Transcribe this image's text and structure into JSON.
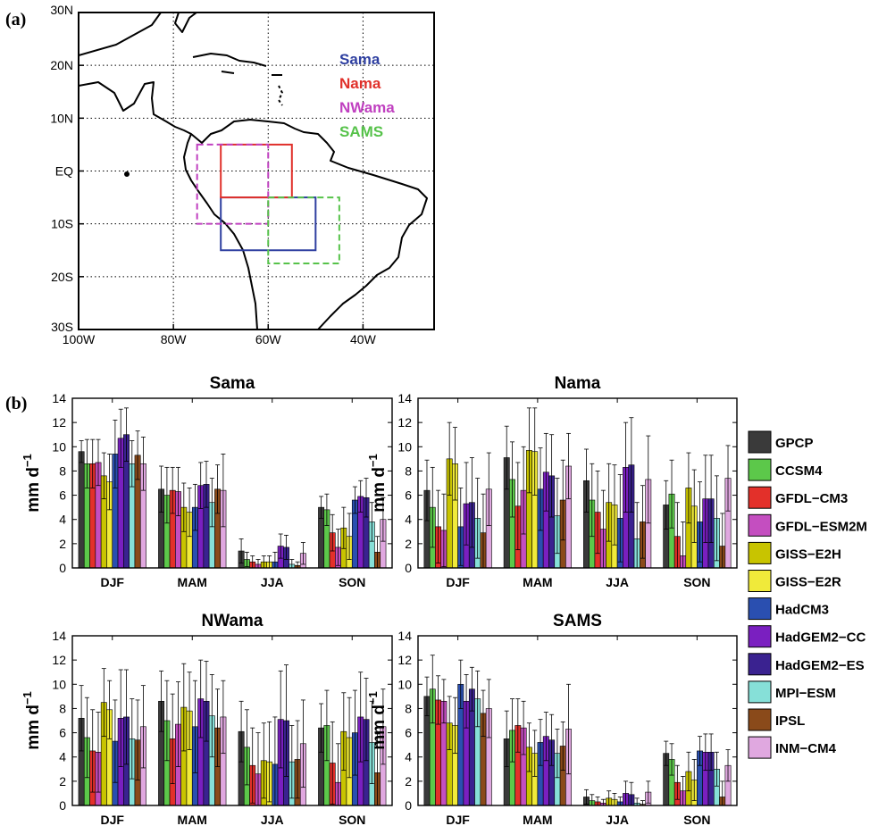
{
  "panel_a": {
    "label": "(a)",
    "lon_ticks": [
      "100W",
      "80W",
      "60W",
      "40W"
    ],
    "lat_ticks": [
      "30N",
      "20N",
      "10N",
      "EQ",
      "10S",
      "20S",
      "30S"
    ],
    "lon_range": [
      -100,
      -25
    ],
    "lat_range": [
      -30,
      30
    ],
    "grid": true,
    "regions": [
      {
        "name": "Sama",
        "lon": [
          -70,
          -50
        ],
        "lat": [
          -15,
          -5
        ],
        "color": "#2e3fa0",
        "dashed": false
      },
      {
        "name": "Nama",
        "lon": [
          -70,
          -55
        ],
        "lat": [
          -5,
          5
        ],
        "color": "#e0302a",
        "dashed": false
      },
      {
        "name": "NWama",
        "lon": [
          -75,
          -60
        ],
        "lat": [
          -10,
          5
        ],
        "color": "#c040c0",
        "dashed": true
      },
      {
        "name": "SAMS",
        "lon": [
          -60,
          -45
        ],
        "lat": [
          -17.5,
          -5
        ],
        "color": "#56c24a",
        "dashed": true
      }
    ]
  },
  "panel_b": {
    "label": "(b)",
    "legend": [
      {
        "name": "GPCP",
        "color": "#3a3a3a"
      },
      {
        "name": "CCSM4",
        "color": "#5cc84a"
      },
      {
        "name": "GFDL−CM3",
        "color": "#e3302a"
      },
      {
        "name": "GFDL−ESM2M",
        "color": "#c44ec0"
      },
      {
        "name": "GISS−E2H",
        "color": "#c8c400"
      },
      {
        "name": "GISS−E2R",
        "color": "#f0ea3a"
      },
      {
        "name": "HadCM3",
        "color": "#2a4fb0"
      },
      {
        "name": "HadGEM2−CC",
        "color": "#7a1fc0"
      },
      {
        "name": "HadGEM2−ES",
        "color": "#3a2290"
      },
      {
        "name": "MPI−ESM",
        "color": "#86e0d8"
      },
      {
        "name": "IPSL",
        "color": "#8a4a1a"
      },
      {
        "name": "INM−CM4",
        "color": "#e0a8e0"
      }
    ]
  },
  "chart_data": [
    {
      "type": "bar",
      "title": "Sama",
      "ylabel": "mm d−1",
      "ylim": [
        0,
        14
      ],
      "yticks": [
        0,
        2,
        4,
        6,
        8,
        10,
        12,
        14
      ],
      "categories": [
        "DJF",
        "MAM",
        "JJA",
        "SON"
      ],
      "series": [
        {
          "name": "GPCP",
          "values": [
            9.6,
            6.5,
            1.4,
            5.0
          ],
          "err": [
            0.9,
            1.9,
            1.0,
            0.9
          ]
        },
        {
          "name": "CCSM4",
          "values": [
            8.6,
            6.0,
            0.7,
            4.8
          ],
          "err": [
            2.0,
            2.3,
            0.6,
            1.3
          ]
        },
        {
          "name": "GFDL−CM3",
          "values": [
            8.6,
            6.4,
            0.5,
            2.9
          ],
          "err": [
            2.0,
            1.9,
            0.5,
            1.5
          ]
        },
        {
          "name": "GFDL−ESM2M",
          "values": [
            8.7,
            6.3,
            0.3,
            1.7
          ],
          "err": [
            1.9,
            2.0,
            0.4,
            1.5
          ]
        },
        {
          "name": "GISS−E2H",
          "values": [
            7.6,
            5.0,
            0.5,
            3.3
          ],
          "err": [
            1.9,
            2.0,
            0.5,
            1.7
          ]
        },
        {
          "name": "GISS−E2R",
          "values": [
            7.1,
            4.6,
            0.5,
            2.6
          ],
          "err": [
            2.3,
            2.0,
            0.5,
            1.9
          ]
        },
        {
          "name": "HadCM3",
          "values": [
            9.4,
            5.0,
            0.5,
            5.6
          ],
          "err": [
            2.8,
            1.9,
            0.8,
            1.1
          ]
        },
        {
          "name": "HadGEM2−CC",
          "values": [
            10.7,
            6.8,
            1.8,
            5.9
          ],
          "err": [
            2.4,
            1.9,
            1.0,
            1.3
          ]
        },
        {
          "name": "HadGEM2−ES",
          "values": [
            11.0,
            6.9,
            1.7,
            5.8
          ],
          "err": [
            2.2,
            1.9,
            1.0,
            1.6
          ]
        },
        {
          "name": "MPI−ESM",
          "values": [
            8.6,
            5.4,
            0.3,
            3.8
          ],
          "err": [
            1.9,
            2.0,
            0.4,
            1.6
          ]
        },
        {
          "name": "IPSL",
          "values": [
            9.3,
            6.5,
            0.2,
            1.3
          ],
          "err": [
            2.0,
            2.0,
            0.3,
            1.3
          ]
        },
        {
          "name": "INM−CM4",
          "values": [
            8.6,
            6.4,
            1.2,
            4.0
          ],
          "err": [
            2.2,
            3.0,
            0.9,
            1.8
          ]
        }
      ]
    },
    {
      "type": "bar",
      "title": "Nama",
      "ylabel": "mm d−1",
      "ylim": [
        0,
        14
      ],
      "yticks": [
        0,
        2,
        4,
        6,
        8,
        10,
        12,
        14
      ],
      "categories": [
        "DJF",
        "MAM",
        "JJA",
        "SON"
      ],
      "series": [
        {
          "name": "GPCP",
          "values": [
            6.4,
            9.1,
            7.2,
            5.2
          ],
          "err": [
            2.5,
            2.6,
            2.6,
            2.0
          ]
        },
        {
          "name": "CCSM4",
          "values": [
            5.0,
            7.3,
            5.6,
            6.1
          ],
          "err": [
            3.3,
            3.1,
            3.0,
            2.8
          ]
        },
        {
          "name": "GFDL−CM3",
          "values": [
            3.4,
            5.1,
            4.6,
            2.6
          ],
          "err": [
            3.0,
            3.6,
            3.4,
            2.8
          ]
        },
        {
          "name": "GFDL−ESM2M",
          "values": [
            3.1,
            6.4,
            3.2,
            1.0
          ],
          "err": [
            3.0,
            3.6,
            3.2,
            2.8
          ]
        },
        {
          "name": "GISS−E2H",
          "values": [
            9.0,
            9.7,
            5.4,
            6.6
          ],
          "err": [
            3.0,
            3.5,
            3.2,
            2.9
          ]
        },
        {
          "name": "GISS−E2R",
          "values": [
            8.6,
            9.6,
            5.2,
            5.1
          ],
          "err": [
            3.0,
            3.6,
            3.3,
            3.0
          ]
        },
        {
          "name": "HadCM3",
          "values": [
            3.4,
            6.5,
            4.1,
            3.8
          ],
          "err": [
            3.2,
            3.4,
            3.6,
            3.3
          ]
        },
        {
          "name": "HadGEM2−CC",
          "values": [
            5.3,
            7.9,
            8.3,
            5.7
          ],
          "err": [
            3.4,
            3.2,
            3.7,
            3.6
          ]
        },
        {
          "name": "HadGEM2−ES",
          "values": [
            5.4,
            7.6,
            8.5,
            5.7
          ],
          "err": [
            3.7,
            3.4,
            3.9,
            3.6
          ]
        },
        {
          "name": "MPI−ESM",
          "values": [
            4.1,
            4.3,
            2.4,
            4.1
          ],
          "err": [
            3.3,
            3.1,
            3.0,
            3.5
          ]
        },
        {
          "name": "IPSL",
          "values": [
            2.9,
            5.6,
            3.8,
            1.8
          ],
          "err": [
            3.2,
            3.3,
            3.0,
            2.7
          ]
        },
        {
          "name": "INM−CM4",
          "values": [
            6.5,
            8.4,
            7.3,
            7.4
          ],
          "err": [
            3.0,
            2.7,
            3.6,
            2.7
          ]
        }
      ]
    },
    {
      "type": "bar",
      "title": "NWama",
      "ylabel": "mm d−1",
      "ylim": [
        0,
        14
      ],
      "yticks": [
        0,
        2,
        4,
        6,
        8,
        10,
        12,
        14
      ],
      "categories": [
        "DJF",
        "MAM",
        "JJA",
        "SON"
      ],
      "series": [
        {
          "name": "GPCP",
          "values": [
            7.2,
            8.6,
            6.1,
            6.4
          ],
          "err": [
            2.7,
            2.5,
            2.5,
            2.0
          ]
        },
        {
          "name": "CCSM4",
          "values": [
            5.6,
            7.0,
            4.8,
            6.6
          ],
          "err": [
            3.3,
            3.3,
            3.1,
            2.9
          ]
        },
        {
          "name": "GFDL−CM3",
          "values": [
            4.5,
            5.5,
            3.3,
            3.5
          ],
          "err": [
            3.4,
            3.7,
            3.1,
            3.4
          ]
        },
        {
          "name": "GFDL−ESM2M",
          "values": [
            4.4,
            6.7,
            2.6,
            1.9
          ],
          "err": [
            3.3,
            3.5,
            3.4,
            3.2
          ]
        },
        {
          "name": "GISS−E2H",
          "values": [
            8.5,
            8.1,
            3.7,
            6.1
          ],
          "err": [
            2.8,
            3.6,
            3.1,
            3.2
          ]
        },
        {
          "name": "GISS−E2R",
          "values": [
            7.9,
            7.8,
            3.6,
            5.6
          ],
          "err": [
            2.4,
            3.2,
            3.3,
            3.3
          ]
        },
        {
          "name": "HadCM3",
          "values": [
            5.3,
            6.5,
            3.4,
            6.0
          ],
          "err": [
            3.4,
            3.8,
            3.9,
            3.5
          ]
        },
        {
          "name": "HadGEM2−CC",
          "values": [
            7.2,
            8.8,
            7.1,
            7.3
          ],
          "err": [
            4.0,
            3.2,
            4.0,
            3.7
          ]
        },
        {
          "name": "HadGEM2−ES",
          "values": [
            7.3,
            8.6,
            7.0,
            7.1
          ],
          "err": [
            3.9,
            3.3,
            4.6,
            3.4
          ]
        },
        {
          "name": "MPI−ESM",
          "values": [
            5.5,
            7.4,
            3.6,
            5.2
          ],
          "err": [
            3.3,
            3.4,
            3.0,
            3.4
          ]
        },
        {
          "name": "IPSL",
          "values": [
            5.4,
            6.4,
            3.8,
            2.7
          ],
          "err": [
            3.3,
            3.2,
            3.2,
            3.2
          ]
        },
        {
          "name": "INM−CM4",
          "values": [
            6.5,
            7.3,
            5.1,
            6.5
          ],
          "err": [
            3.4,
            3.0,
            3.6,
            3.1
          ]
        }
      ]
    },
    {
      "type": "bar",
      "title": "SAMS",
      "ylabel": "mm d−1",
      "ylim": [
        0,
        14
      ],
      "yticks": [
        0,
        2,
        4,
        6,
        8,
        10,
        12,
        14
      ],
      "categories": [
        "DJF",
        "MAM",
        "JJA",
        "SON"
      ],
      "series": [
        {
          "name": "GPCP",
          "values": [
            9.0,
            5.5,
            0.7,
            4.3
          ],
          "err": [
            1.6,
            2.3,
            0.6,
            1.0
          ]
        },
        {
          "name": "CCSM4",
          "values": [
            9.6,
            6.2,
            0.4,
            3.8
          ],
          "err": [
            2.8,
            2.6,
            0.5,
            1.3
          ]
        },
        {
          "name": "GFDL−CM3",
          "values": [
            8.7,
            6.6,
            0.3,
            1.9
          ],
          "err": [
            2.0,
            2.2,
            0.4,
            1.4
          ]
        },
        {
          "name": "GFDL−ESM2M",
          "values": [
            8.6,
            6.4,
            0.2,
            1.2
          ],
          "err": [
            1.8,
            2.2,
            0.3,
            1.2
          ]
        },
        {
          "name": "GISS−E2H",
          "values": [
            6.8,
            4.8,
            0.6,
            2.8
          ],
          "err": [
            2.2,
            2.0,
            0.6,
            1.6
          ]
        },
        {
          "name": "GISS−E2R",
          "values": [
            6.6,
            4.3,
            0.5,
            2.1
          ],
          "err": [
            2.3,
            1.9,
            0.5,
            1.7
          ]
        },
        {
          "name": "HadCM3",
          "values": [
            10.0,
            5.2,
            0.3,
            4.5
          ],
          "err": [
            2.0,
            1.9,
            0.4,
            1.2
          ]
        },
        {
          "name": "HadGEM2−CC",
          "values": [
            8.6,
            5.7,
            1.0,
            4.4
          ],
          "err": [
            2.2,
            2.0,
            1.0,
            1.5
          ]
        },
        {
          "name": "HadGEM2−ES",
          "values": [
            9.6,
            5.4,
            0.9,
            4.4
          ],
          "err": [
            1.8,
            2.1,
            1.0,
            1.5
          ]
        },
        {
          "name": "MPI−ESM",
          "values": [
            8.8,
            4.3,
            0.2,
            3.0
          ],
          "err": [
            2.3,
            2.0,
            0.4,
            1.4
          ]
        },
        {
          "name": "IPSL",
          "values": [
            7.6,
            4.9,
            0.1,
            0.7
          ],
          "err": [
            1.9,
            2.0,
            0.3,
            1.3
          ]
        },
        {
          "name": "INM−CM4",
          "values": [
            8.0,
            6.3,
            1.1,
            3.3
          ],
          "err": [
            2.4,
            3.7,
            0.9,
            1.3
          ]
        }
      ]
    }
  ]
}
